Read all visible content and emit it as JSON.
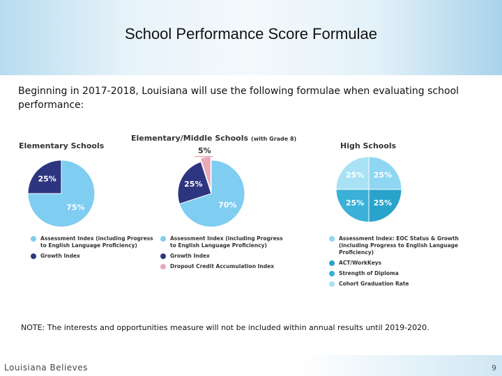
{
  "slide": {
    "title": "School Performance Score Formulae",
    "intro": "Beginning in 2017-2018, Louisiana will use the following formulae when evaluating school performance:",
    "note": "NOTE: The interests and opportunities measure will not be included within annual results until 2019-2020.",
    "footer": "Louisiana Believes",
    "page_number": "9"
  },
  "chart_data": [
    {
      "type": "pie",
      "title": "Elementary Schools",
      "categories": [
        "Assessment Index (including Progress to English Language Proficiency)",
        "Growth Index"
      ],
      "values": [
        75,
        25
      ],
      "value_labels": [
        "75%",
        "25%"
      ],
      "colors": [
        "#7fcdf0",
        "#2e3580"
      ]
    },
    {
      "type": "pie",
      "title": "Elementary/Middle Schools",
      "subtitle": "(with Grade 8)",
      "categories": [
        "Assessment Index (including Progress to English Language Proficiency)",
        "Growth Index",
        "Dropout Credit Accumulation Index"
      ],
      "values": [
        70,
        25,
        5
      ],
      "value_labels": [
        "70%",
        "25%",
        "5%"
      ],
      "colors": [
        "#7fcdf0",
        "#2e3580",
        "#eaa9b6"
      ]
    },
    {
      "type": "pie",
      "title": "High Schools",
      "categories": [
        "Assessment Index: EOC Status & Growth (including Progress to English Language Proficiency)",
        "ACT/WorkKeys",
        "Strength of Diploma",
        "Cohort Graduation Rate"
      ],
      "values": [
        25,
        25,
        25,
        25
      ],
      "value_labels": [
        "25%",
        "25%",
        "25%",
        "25%"
      ],
      "colors": [
        "#8fd6f2",
        "#2aa3cc",
        "#3bb0d8",
        "#a9e1f5"
      ]
    }
  ]
}
